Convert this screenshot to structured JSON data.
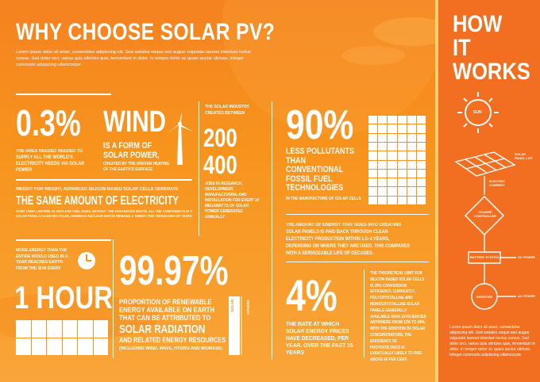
{
  "header": {
    "title": "WHY CHOOSE SOLAR PV?",
    "intro": "Lorem ipsum dolor sit amet, consectetur adipiscing elit. Sed sodales neque sed augue vulputate laoreet interdum lectus cursus. Sed dolor orci, varius quis ultricies quis, fermentum in dolor. In tempor tortor ac quam auctor ultrices. Integer commodo adipiscing ullamcorper."
  },
  "stats": {
    "area": {
      "value": "0.3%",
      "text": "THE AREA NEEDED NEEDED TO SUPPLY ALL THE WORLD'S ELECTRICITY NEEDS VIA SOLAR POWER"
    },
    "wind": {
      "title": "WIND",
      "line1": "IS A FORM OF",
      "line2": "SOLAR POWER,",
      "text": "CREATED BY THE UNEVEN HEATING OF THE EARTH'S SURFACE"
    },
    "jobs": {
      "intro": "THE SOLAR INDUSTRY CREATES BETWEEN",
      "n1": "200",
      "dash": "–",
      "n2": "400",
      "text": "JOBS IN RESEARCH, DEVELOPMENT, MANUFACTURING AND INSTALLATION FOR EVERY 10 MEGAWATTS OF SOLAR POWER GENERATED ANNUALLY"
    },
    "weight": {
      "line1": "WEIGHT FOR WEIGHT, ADVANCED SILICON BASED SOLAR CELLS GENERATE",
      "headline": "THE SAME AMOUNT OF ELECTRICITY",
      "text": "OVER THEIR LIFETIME AS NUCLEAR FUEL RODS, WITHOUT THE HAZARDOUS WASTE. ALL THE COMPONENTS IN A SOLAR PANEL CAN BE RECYCLED, WHEREAS NUCLEAR WASTE REMAINS A THREAT FOR THOUSANDS OF YEARS"
    },
    "pollutants": {
      "value": "90%",
      "text": "LESS POLLUTANTS THAN CONVENTIONAL FOSSIL FUEL TECHNOLOGIES",
      "sub": "IN THE MANUFACTURE OF SOLAR CELLS"
    },
    "payback": {
      "text": "THE AMOUNT OF ENERGY THAT GOES INTO CREATING SOLAR PANELS IS PAID BACK THROUGH CLEAN ELECTRICITY PRODUCTION WITHIN 1.5–4 YEARS, DEPENDING ON WHERE THEY ARE USED. THIS COMPARES WITH A SERVICEABLE LIFE OF DECADES."
    },
    "hour": {
      "text": "MORE ENERGY THAN THE ENTIRE WORLD USED IN A YEAR REACHES EARTH FROM THE SUN EVERY",
      "value": "1 HOUR"
    },
    "renewable": {
      "value": "99.97%",
      "line1": "PROPORTION OF RENEWABLE ENERGY AVAILABLE ON EARTH THAT CAN BE ATTRIBUTED TO",
      "headline": "SOLAR RADIATION",
      "line2": "AND RELATED ENERGY RESOURCES",
      "sub": "(INCLUDING WIND, WAVE, HYDRO AND BIOMASS)"
    },
    "bar": {
      "label1": "SOLAR",
      "label2": "OTHERS"
    },
    "prices": {
      "value": "4%",
      "text": "THE RATE AT WHICH SOLAR ENERGY PRICES HAVE DECREASED, PER YEAR, OVER THE PAST 15 YEARS"
    },
    "efficiency": {
      "text": "THE THEORETICAL LIMIT FOR SILICON BASED SOLAR CELLS IS 29% CONVERSION EFFICIENCY. CURRENTLY, POLYCRYSTALLINE AND MONOCRYSTALLINE SOLAR PANELS GENERALLY AVAILABLE HAVE EFFICIENCIES ANYWHERE FROM 12% TO 18%. WITH THE ADDITION OF SOLAR CONCENTRATORS, THE EFFICIENCY OF PHOTOVOLTAICS IS EVENTUALLY LIKELY TO RISE ABOVE 60 PER CENT."
    }
  },
  "how": {
    "title_line1": "HOW",
    "title_line2": "IT",
    "title_line3": "WORKS",
    "sun": "SUN",
    "panel": "SOLAR PANEL LIST",
    "electric": "ELECTRIC CURRENT",
    "controller": "CHARGE CONTROLLER",
    "battery": "BATTERY SYSTEM",
    "dc": "DC POWER",
    "inverter": "INVERTER",
    "ac": "AC POWER",
    "footer": "Lorem ipsum dolor sit amet, consectetur adipiscing elit. Sed sodales neque sed augue vulputate laoreet interdum lectus cursus. Sed dolor orci, varius quis ultricies quis, fermentum in dolor. In tempor tortor ac quam auctor ultrices. Integer commodo adipiscing ullamcorper."
  },
  "colors": {
    "background": "#f7941d",
    "sidebar": "#f26f21",
    "accent": "#fbd06c"
  }
}
